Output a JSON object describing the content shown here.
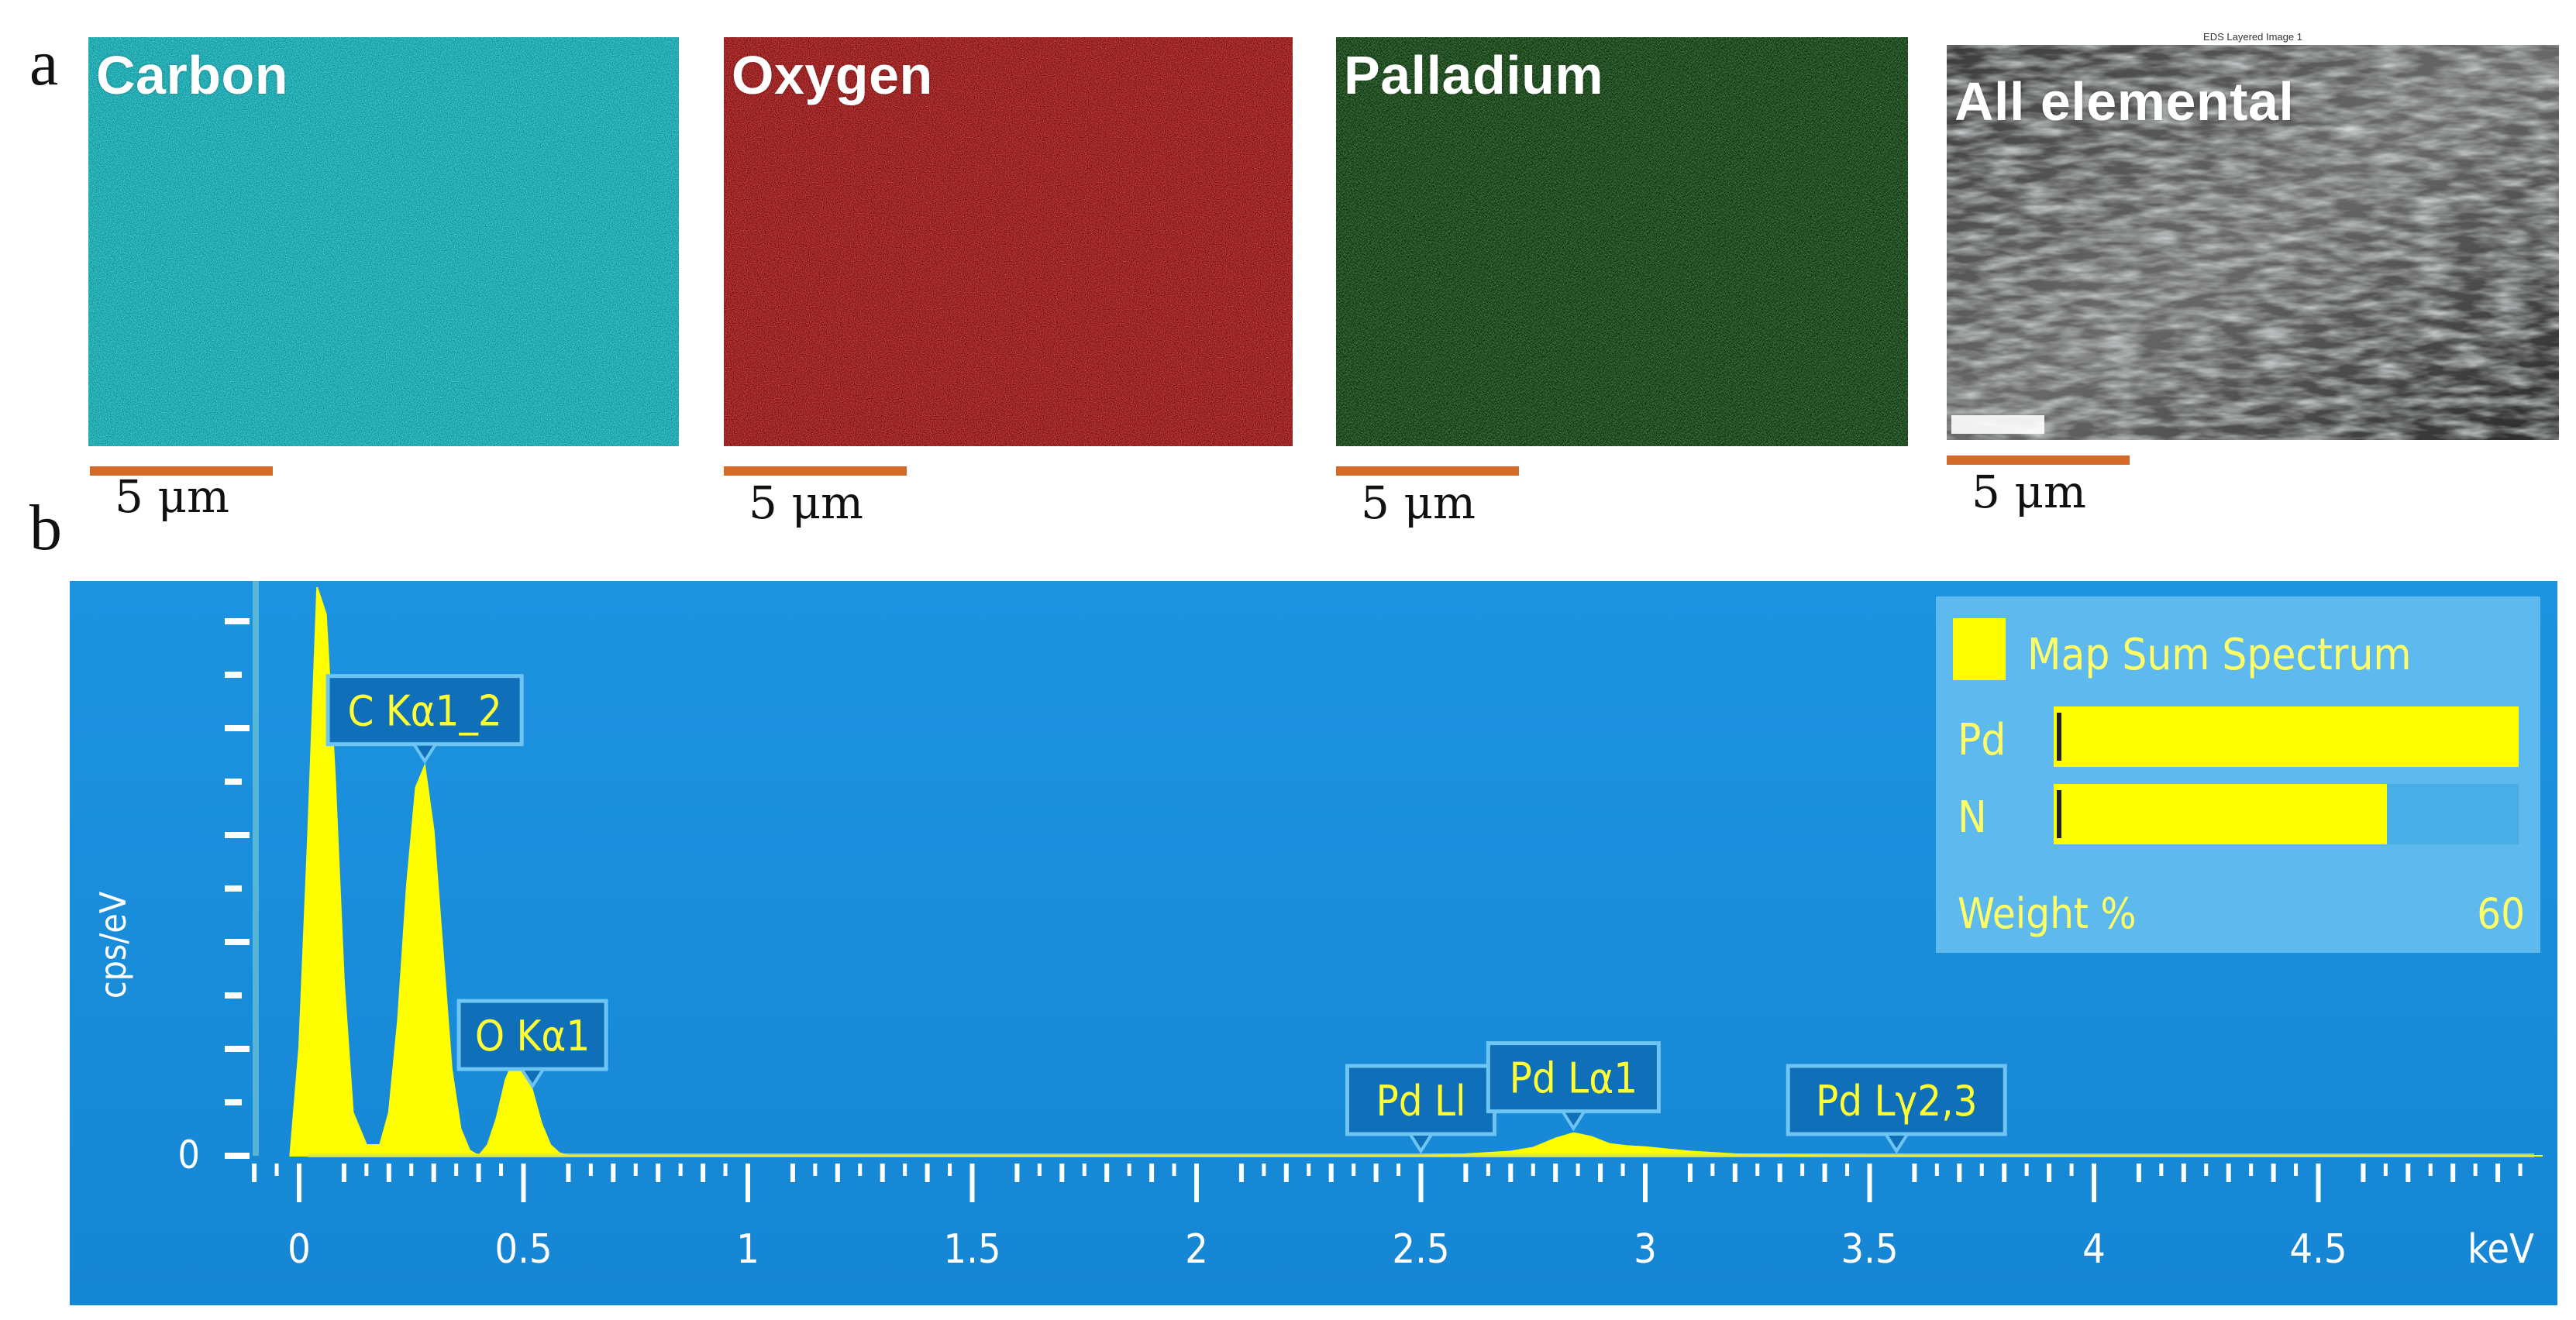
{
  "panels": {
    "a": "a",
    "b": "b"
  },
  "maps": [
    {
      "label": "Carbon",
      "color": "#20c8c8",
      "scale": "5 μm"
    },
    {
      "label": "Oxygen",
      "color": "#b01414",
      "scale": "5 μm"
    },
    {
      "label": "Palladium",
      "color": "#1e8a1e",
      "scale": "5 μm"
    },
    {
      "label": "All elemental",
      "color": "#8a8a8a",
      "scale": "5 μm",
      "inset_title": "EDS Layered Image 1"
    }
  ],
  "colors": {
    "chart_bg": "#1a8fdc",
    "peak": "#ffff00",
    "callout_bg": "#0f6fb8",
    "callout_border": "#6ec4f2",
    "axis": "#ffffff",
    "scalebar": "#d46a2a",
    "legend_bg": "#5cb8ec"
  },
  "chart_data": {
    "type": "area",
    "ylabel": "cps/eV",
    "xlabel": "keV",
    "xlim": [
      -0.05,
      5.0
    ],
    "x_ticks": [
      "0",
      "0.5",
      "1",
      "1.5",
      "2",
      "2.5",
      "3",
      "3.5",
      "4",
      "4.5"
    ],
    "y_ticks": [
      "0"
    ],
    "series": [
      {
        "name": "Map Sum Spectrum",
        "x": [
          -0.02,
          0.0,
          0.02,
          0.04,
          0.06,
          0.08,
          0.1,
          0.12,
          0.15,
          0.18,
          0.2,
          0.22,
          0.24,
          0.26,
          0.28,
          0.3,
          0.32,
          0.34,
          0.36,
          0.38,
          0.4,
          0.42,
          0.44,
          0.46,
          0.48,
          0.5,
          0.52,
          0.54,
          0.56,
          0.58,
          0.6,
          0.62,
          0.65,
          0.7,
          1.0,
          1.5,
          2.0,
          2.5,
          2.6,
          2.7,
          2.75,
          2.8,
          2.84,
          2.88,
          2.92,
          2.96,
          3.0,
          3.05,
          3.1,
          3.2,
          3.5,
          4.0,
          4.5,
          5.0
        ],
        "y": [
          0.0,
          0.2,
          0.6,
          1.05,
          1.0,
          0.7,
          0.32,
          0.08,
          0.02,
          0.02,
          0.08,
          0.25,
          0.5,
          0.68,
          0.72,
          0.6,
          0.38,
          0.16,
          0.05,
          0.01,
          0.0,
          0.02,
          0.07,
          0.14,
          0.18,
          0.17,
          0.12,
          0.06,
          0.02,
          0.005,
          0.0,
          0.0,
          0.0,
          0.0,
          0.0,
          0.0,
          0.0,
          0.0,
          0.003,
          0.008,
          0.015,
          0.032,
          0.042,
          0.035,
          0.022,
          0.018,
          0.016,
          0.012,
          0.008,
          0.003,
          0.0,
          0.0,
          0.0,
          0.0
        ]
      }
    ],
    "annotations": [
      {
        "label": "C Kα1_2",
        "x": 0.28
      },
      {
        "label": "O Kα1",
        "x": 0.52
      },
      {
        "label": "Pd Ll",
        "x": 2.5
      },
      {
        "label": "Pd Lα1",
        "x": 2.84
      },
      {
        "label": "Pd Lγ2,3",
        "x": 3.56
      }
    ],
    "legend": {
      "title": "Map Sum Spectrum",
      "position": "top-right",
      "xlabel": "Weight %",
      "xmax_label": "60",
      "bars": [
        {
          "label": "Pd",
          "value": 60
        },
        {
          "label": "N",
          "value": 43
        }
      ]
    }
  }
}
